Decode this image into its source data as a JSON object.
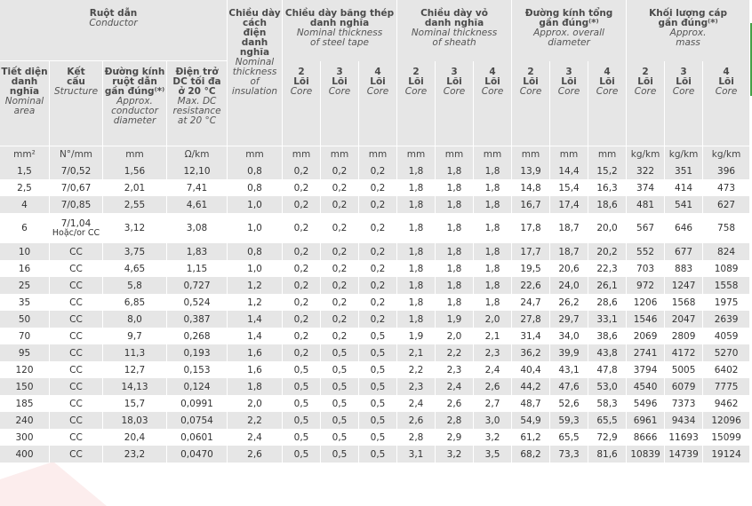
{
  "header": {
    "conductor_vi": "Ruột dẫn",
    "conductor_en": "Conductor",
    "insulation_vi": [
      "Chiều dày",
      "cách",
      "điện",
      "danh",
      "nghĩa"
    ],
    "insulation_en": [
      "Nominal",
      "thickness",
      "of",
      "insulation"
    ],
    "steel_vi": [
      "Chiều dày băng thép",
      "danh nghĩa"
    ],
    "steel_en": [
      "Nominal thickness",
      "of steel tape"
    ],
    "sheath_vi": [
      "Chiều dày vỏ",
      "danh nghĩa"
    ],
    "sheath_en": [
      "Nominal thickness",
      "of sheath"
    ],
    "diameter_vi": [
      "Đường kính tổng",
      "gần đúng⁽*⁾"
    ],
    "diameter_en": [
      "Approx. overall",
      "diameter"
    ],
    "mass_vi": [
      "Khối lượng cáp",
      "gần đúng⁽*⁾"
    ],
    "mass_en": [
      "Approx.",
      "mass"
    ],
    "area_vi": [
      "Tiết diện",
      "danh",
      "nghĩa"
    ],
    "area_en": [
      "Nominal",
      "area"
    ],
    "structure_vi": [
      "Kết",
      "cấu"
    ],
    "structure_en": [
      "Structure"
    ],
    "cond_dia_vi": [
      "Đường kính",
      "ruột dẫn",
      "gần đúng⁽*⁾"
    ],
    "cond_dia_en": [
      "Approx.",
      "conductor",
      "diameter"
    ],
    "resistance_vi": [
      "Điện trở",
      "DC tối đa",
      "ở 20 °C"
    ],
    "resistance_en": [
      "Max. DC",
      "resistance",
      "at 20 °C"
    ],
    "core_labels": [
      {
        "n": "2",
        "vi": "Lõi",
        "en": "Core"
      },
      {
        "n": "3",
        "vi": "Lõi",
        "en": "Core"
      },
      {
        "n": "4",
        "vi": "Lõi",
        "en": "Core"
      }
    ],
    "units": [
      "mm²",
      "N°/mm",
      "mm",
      "Ω/km",
      "mm",
      "mm",
      "mm",
      "mm",
      "mm",
      "mm",
      "mm",
      "mm",
      "mm",
      "mm",
      "kg/km",
      "kg/km",
      "kg/km"
    ]
  },
  "rows": [
    [
      "1,5",
      "7/0,52",
      "1,56",
      "12,10",
      "0,8",
      "0,2",
      "0,2",
      "0,2",
      "1,8",
      "1,8",
      "1,8",
      "13,9",
      "14,4",
      "15,2",
      "322",
      "351",
      "396"
    ],
    [
      "2,5",
      "7/0,67",
      "2,01",
      "7,41",
      "0,8",
      "0,2",
      "0,2",
      "0,2",
      "1,8",
      "1,8",
      "1,8",
      "14,8",
      "15,4",
      "16,3",
      "374",
      "414",
      "473"
    ],
    [
      "4",
      "7/0,85",
      "2,55",
      "4,61",
      "1,0",
      "0,2",
      "0,2",
      "0,2",
      "1,8",
      "1,8",
      "1,8",
      "16,7",
      "17,4",
      "18,6",
      "481",
      "541",
      "627"
    ],
    [
      "6",
      "7/1,04",
      "3,12",
      "3,08",
      "1,0",
      "0,2",
      "0,2",
      "0,2",
      "1,8",
      "1,8",
      "1,8",
      "17,8",
      "18,7",
      "20,0",
      "567",
      "646",
      "758"
    ],
    [
      "10",
      "CC",
      "3,75",
      "1,83",
      "0,8",
      "0,2",
      "0,2",
      "0,2",
      "1,8",
      "1,8",
      "1,8",
      "17,7",
      "18,7",
      "20,2",
      "552",
      "677",
      "824"
    ],
    [
      "16",
      "CC",
      "4,65",
      "1,15",
      "1,0",
      "0,2",
      "0,2",
      "0,2",
      "1,8",
      "1,8",
      "1,8",
      "19,5",
      "20,6",
      "22,3",
      "703",
      "883",
      "1089"
    ],
    [
      "25",
      "CC",
      "5,8",
      "0,727",
      "1,2",
      "0,2",
      "0,2",
      "0,2",
      "1,8",
      "1,8",
      "1,8",
      "22,6",
      "24,0",
      "26,1",
      "972",
      "1247",
      "1558"
    ],
    [
      "35",
      "CC",
      "6,85",
      "0,524",
      "1,2",
      "0,2",
      "0,2",
      "0,2",
      "1,8",
      "1,8",
      "1,8",
      "24,7",
      "26,2",
      "28,6",
      "1206",
      "1568",
      "1975"
    ],
    [
      "50",
      "CC",
      "8,0",
      "0,387",
      "1,4",
      "0,2",
      "0,2",
      "0,2",
      "1,8",
      "1,9",
      "2,0",
      "27,8",
      "29,7",
      "33,1",
      "1546",
      "2047",
      "2639"
    ],
    [
      "70",
      "CC",
      "9,7",
      "0,268",
      "1,4",
      "0,2",
      "0,2",
      "0,5",
      "1,9",
      "2,0",
      "2,1",
      "31,4",
      "34,0",
      "38,6",
      "2069",
      "2809",
      "4059"
    ],
    [
      "95",
      "CC",
      "11,3",
      "0,193",
      "1,6",
      "0,2",
      "0,5",
      "0,5",
      "2,1",
      "2,2",
      "2,3",
      "36,2",
      "39,9",
      "43,8",
      "2741",
      "4172",
      "5270"
    ],
    [
      "120",
      "CC",
      "12,7",
      "0,153",
      "1,6",
      "0,5",
      "0,5",
      "0,5",
      "2,2",
      "2,3",
      "2,4",
      "40,4",
      "43,1",
      "47,8",
      "3794",
      "5005",
      "6402"
    ],
    [
      "150",
      "CC",
      "14,13",
      "0,124",
      "1,8",
      "0,5",
      "0,5",
      "0,5",
      "2,3",
      "2,4",
      "2,6",
      "44,2",
      "47,6",
      "53,0",
      "4540",
      "6079",
      "7775"
    ],
    [
      "185",
      "CC",
      "15,7",
      "0,0991",
      "2,0",
      "0,5",
      "0,5",
      "0,5",
      "2,4",
      "2,6",
      "2,7",
      "48,7",
      "52,6",
      "58,3",
      "5496",
      "7373",
      "9462"
    ],
    [
      "240",
      "CC",
      "18,03",
      "0,0754",
      "2,2",
      "0,5",
      "0,5",
      "0,5",
      "2,6",
      "2,8",
      "3,0",
      "54,9",
      "59,3",
      "65,5",
      "6961",
      "9434",
      "12096"
    ],
    [
      "300",
      "CC",
      "20,4",
      "0,0601",
      "2,4",
      "0,5",
      "0,5",
      "0,5",
      "2,8",
      "2,9",
      "3,2",
      "61,2",
      "65,5",
      "72,9",
      "8666",
      "11693",
      "15099"
    ],
    [
      "400",
      "CC",
      "23,2",
      "0,0470",
      "2,6",
      "0,5",
      "0,5",
      "0,5",
      "3,1",
      "3,2",
      "3,5",
      "68,2",
      "73,3",
      "81,6",
      "10839",
      "14739",
      "19124"
    ]
  ],
  "row6_extra": "Hoặc/or CC",
  "colors": {
    "header_bg": "#e6e6e6",
    "stripe_bg": "#e6e6e6",
    "watermark": "#f3c9c9",
    "accent": "#46a046"
  }
}
